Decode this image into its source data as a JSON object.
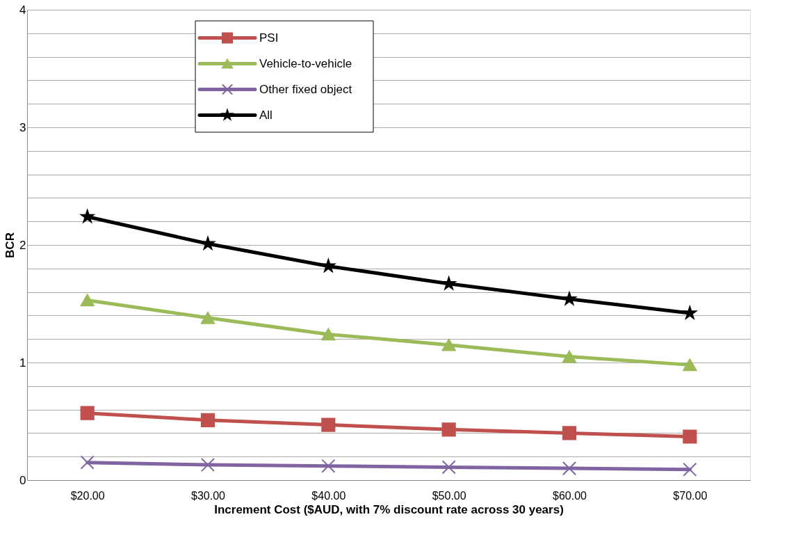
{
  "chart_data": {
    "type": "line",
    "xlabel": "Increment Cost ($AUD, with 7% discount rate across 30 years)",
    "ylabel": "BCR",
    "categories": [
      "$20.00",
      "$30.00",
      "$40.00",
      "$50.00",
      "$60.00",
      "$70.00"
    ],
    "series": [
      {
        "name": "PSI",
        "color": "#c0504d",
        "marker": "square",
        "values": [
          0.57,
          0.51,
          0.47,
          0.43,
          0.4,
          0.37
        ]
      },
      {
        "name": "Vehicle-to-vehicle",
        "color": "#9bbb59",
        "marker": "triangle",
        "values": [
          1.53,
          1.38,
          1.24,
          1.15,
          1.05,
          0.98
        ]
      },
      {
        "name": "Other fixed object",
        "color": "#8064a2",
        "marker": "cross",
        "values": [
          0.15,
          0.13,
          0.12,
          0.11,
          0.1,
          0.09
        ]
      },
      {
        "name": "All",
        "color": "#000000",
        "marker": "star",
        "values": [
          2.24,
          2.01,
          1.82,
          1.67,
          1.54,
          1.42
        ]
      }
    ],
    "ylim": [
      0,
      4
    ],
    "yticks": [
      0,
      {
        "value": 0.2,
        "label": null
      },
      {
        "value": 0.4,
        "label": null
      },
      {
        "value": 0.6,
        "label": null
      },
      {
        "value": 0.8,
        "label": null
      },
      1,
      {
        "value": 1.2,
        "label": null
      },
      {
        "value": 1.4,
        "label": null
      },
      {
        "value": 1.6,
        "label": null
      },
      {
        "value": 1.8,
        "label": null
      },
      2,
      {
        "value": 2.2,
        "label": null
      },
      {
        "value": 2.4,
        "label": null
      },
      {
        "value": 2.6,
        "label": null
      },
      {
        "value": 2.8,
        "label": null
      },
      3,
      {
        "value": 3.2,
        "label": null
      },
      {
        "value": 3.4,
        "label": null
      },
      {
        "value": 3.6,
        "label": null
      },
      {
        "value": 3.8,
        "label": null
      },
      4
    ],
    "grid": "y",
    "legend": "top",
    "line_style": "solid"
  }
}
